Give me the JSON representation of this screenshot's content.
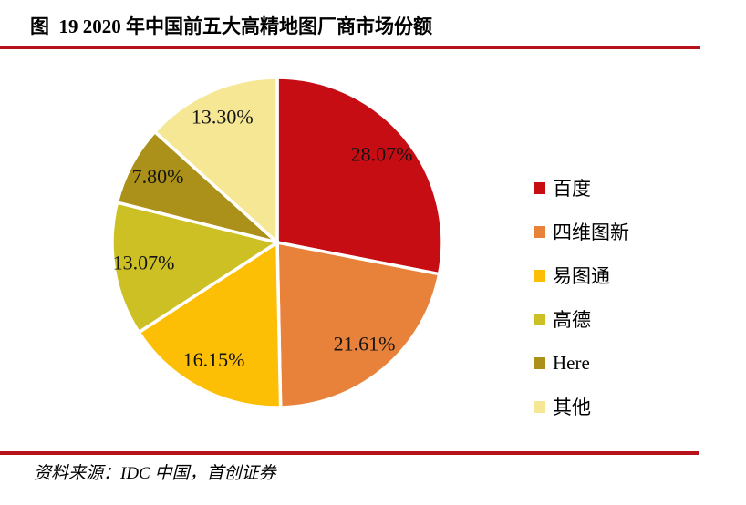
{
  "title": {
    "text": "图  19 2020 年中国前五大高精地图厂商市场份额"
  },
  "source": {
    "text": "资料来源：IDC 中国，首创证券"
  },
  "rule_color": "#B7111B",
  "chart_data": {
    "type": "pie",
    "title": "2020 年中国前五大高精地图厂商市场份额",
    "start_angle_deg": 0,
    "direction": "clockwise",
    "legend_position": "right",
    "separator_color": "#FFFFFF",
    "label_color": "#141414",
    "slices": [
      {
        "label": "百度",
        "value": 28.07,
        "display": "28.07%",
        "color": "#C60D13"
      },
      {
        "label": "四维图新",
        "value": 21.61,
        "display": "21.61%",
        "color": "#E8823B"
      },
      {
        "label": "易图通",
        "value": 16.15,
        "display": "16.15%",
        "color": "#FCBF05"
      },
      {
        "label": "高德",
        "value": 13.07,
        "display": "13.07%",
        "color": "#CDC024"
      },
      {
        "label": "Here",
        "value": 7.8,
        "display": "7.80%",
        "color": "#AB9119"
      },
      {
        "label": "其他",
        "value": 13.3,
        "display": "13.30%",
        "color": "#F6E795"
      }
    ]
  }
}
